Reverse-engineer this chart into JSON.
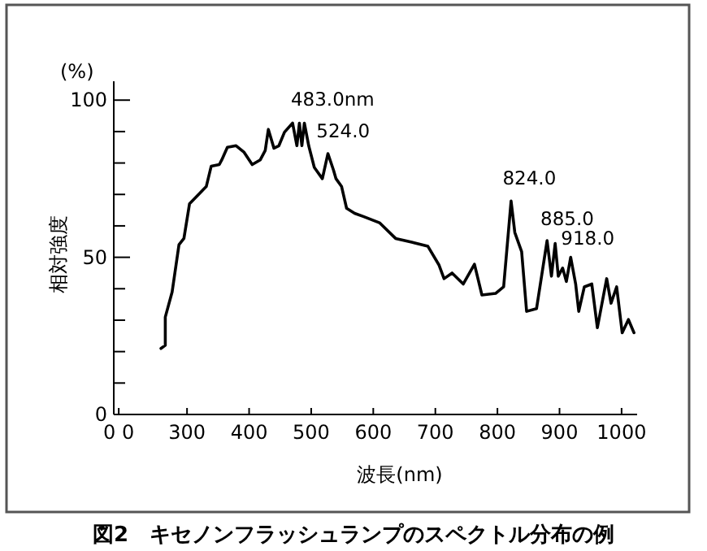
{
  "chart_data": {
    "type": "line",
    "title": "図2　キセノンフラッシュランプのスペクトル分布の例",
    "xlabel": "波長(nm)",
    "ylabel": "相対強度",
    "annotations": [
      "(%)",
      {
        "text": "483.0nm",
        "x": 483,
        "y": 93
      },
      {
        "text": "524.0",
        "x": 524,
        "y": 83
      },
      {
        "text": "824.0",
        "x": 824,
        "y": 68
      },
      {
        "text": "885.0",
        "x": 885,
        "y": 55
      },
      {
        "text": "918.0",
        "x": 918,
        "y": 50
      }
    ],
    "xlim": [
      182,
      1025
    ],
    "ylim": [
      0,
      106
    ],
    "xticks": [
      {
        "value": 190,
        "label": "0 0"
      },
      300,
      400,
      500,
      600,
      700,
      800,
      900,
      1000
    ],
    "yticks": [
      0,
      {
        "value": 10,
        "label": null
      },
      {
        "value": 20,
        "label": null
      },
      {
        "value": 30,
        "label": null
      },
      {
        "value": 40,
        "label": null
      },
      50,
      {
        "value": 60,
        "label": null
      },
      {
        "value": 70,
        "label": null
      },
      {
        "value": 80,
        "label": null
      },
      {
        "value": 90,
        "label": null
      },
      100
    ],
    "grid": false,
    "marker": "none",
    "line_style": "solid",
    "series": [
      {
        "color": "#000000",
        "x": [
          258,
          265,
          265,
          276,
          287,
          295,
          304,
          331,
          339,
          352,
          356,
          365,
          379,
          392,
          405,
          418,
          426,
          431,
          440,
          448,
          457,
          470,
          477,
          481,
          485,
          489,
          496,
          505,
          518,
          527,
          536,
          540,
          549,
          557,
          570,
          584,
          610,
          636,
          662,
          688,
          706,
          714,
          727,
          745,
          763,
          775,
          797,
          810,
          822,
          828,
          839,
          847,
          863,
          880,
          887,
          893,
          898,
          905,
          911,
          918,
          926,
          931,
          940,
          952,
          961,
          976,
          983,
          992,
          1001,
          1011,
          1020
        ],
        "values": [
          21,
          22,
          31,
          39,
          54,
          56,
          67,
          72.5,
          79,
          79.5,
          81,
          85,
          85.5,
          83.4,
          79.5,
          81,
          84,
          90.7,
          84.7,
          85.5,
          89.8,
          92.7,
          85.5,
          92.7,
          85.5,
          92.7,
          85.5,
          78.6,
          75,
          83,
          77.7,
          75,
          72.5,
          65.6,
          64,
          63,
          61,
          56,
          54.8,
          53.5,
          47.5,
          43.2,
          45,
          41.5,
          47.8,
          38,
          38.5,
          40.6,
          67.9,
          57.9,
          51.8,
          32.8,
          33.7,
          55.3,
          44,
          54.4,
          44,
          46.6,
          42.3,
          50,
          41.5,
          32.8,
          40.6,
          41.5,
          27.6,
          43.2,
          35.4,
          40.6,
          26,
          30.2,
          26
        ]
      }
    ]
  }
}
